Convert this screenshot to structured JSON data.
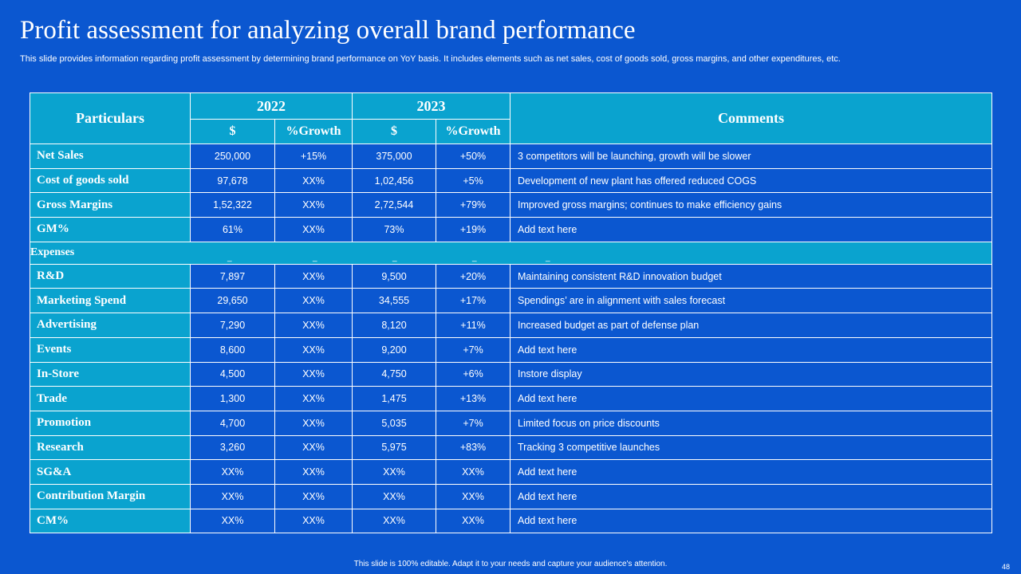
{
  "slide": {
    "title": "Profit assessment for analyzing overall brand performance",
    "subtitle": "This slide provides information regarding profit assessment by determining brand performance on YoY  basis. It includes elements such as net sales, cost of goods sold, gross margins, and other expenditures, etc.",
    "footer": "This slide is 100% editable.  Adapt it to your needs and capture your audience's attention.",
    "page_number": "48"
  },
  "table": {
    "header": {
      "particulars": "Particulars",
      "year1": "2022",
      "year2": "2023",
      "comments": "Comments",
      "dollar1": "$",
      "growth1": "%Growth",
      "dollar2": "$",
      "growth2": "%Growth"
    },
    "rows_top": [
      {
        "label": "Net Sales",
        "v1": "250,000",
        "g1": "+15%",
        "v2": "375,000",
        "g2": "+50%",
        "comment": "3 competitors will be launching, growth will be slower"
      },
      {
        "label": "Cost of goods sold",
        "v1": "97,678",
        "g1": "XX%",
        "v2": "1,02,456",
        "g2": "+5%",
        "comment": "Development  of new plant has offered   reduced COGS"
      },
      {
        "label": "Gross Margins",
        "v1": "1,52,322",
        "g1": "XX%",
        "v2": "2,72,544",
        "g2": "+79%",
        "comment": "Improved  gross margins;  continues to make efficiency gains"
      },
      {
        "label": "GM%",
        "v1": "61%",
        "g1": "XX%",
        "v2": "73%",
        "g2": "+19%",
        "comment": "Add text here"
      }
    ],
    "expenses_label": "Expenses",
    "expenses_dash": "_",
    "rows_bottom": [
      {
        "label": "R&D",
        "v1": "7,897",
        "g1": "XX%",
        "v2": "9,500",
        "g2": "+20%",
        "comment": "Maintaining consistent R&D innovation  budget"
      },
      {
        "label": "Marketing Spend",
        "v1": "29,650",
        "g1": "XX%",
        "v2": "34,555",
        "g2": "+17%",
        "comment": "Spendings’ are in alignment with sales forecast"
      },
      {
        "label": "Advertising",
        "v1": "7,290",
        "g1": "XX%",
        "v2": "8,120",
        "g2": "+11%",
        "comment": "Increased  budget as part of defense plan"
      },
      {
        "label": "Events",
        "v1": "8,600",
        "g1": "XX%",
        "v2": "9,200",
        "g2": "+7%",
        "comment": "Add text here"
      },
      {
        "label": "In-Store",
        "v1": "4,500",
        "g1": "XX%",
        "v2": "4,750",
        "g2": "+6%",
        "comment": "Instore display"
      },
      {
        "label": "Trade",
        "v1": "1,300",
        "g1": "XX%",
        "v2": "1,475",
        "g2": "+13%",
        "comment": "Add text here"
      },
      {
        "label": "Promotion",
        "v1": "4,700",
        "g1": "XX%",
        "v2": "5,035",
        "g2": "+7%",
        "comment": "Limited focus on price discounts"
      },
      {
        "label": "Research",
        "v1": "3,260",
        "g1": "XX%",
        "v2": "5,975",
        "g2": "+83%",
        "comment": "Tracking 3 competitive launches"
      },
      {
        "label": "SG&A",
        "v1": "XX%",
        "g1": "XX%",
        "v2": "XX%",
        "g2": "XX%",
        "comment": "Add text here"
      },
      {
        "label": "Contribution Margin",
        "v1": "XX%",
        "g1": "XX%",
        "v2": "XX%",
        "g2": "XX%",
        "comment": "Add text here"
      },
      {
        "label": "CM%",
        "v1": "XX%",
        "g1": "XX%",
        "v2": "XX%",
        "g2": "XX%",
        "comment": "Add text here"
      }
    ]
  }
}
